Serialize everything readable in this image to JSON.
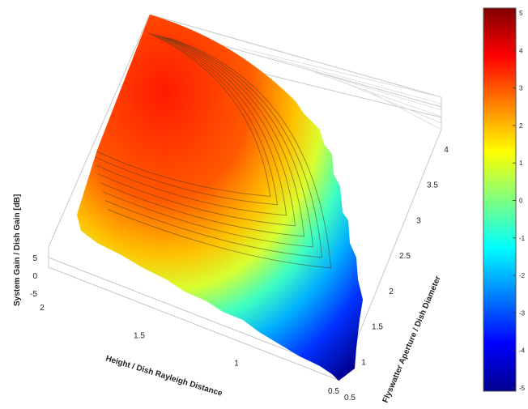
{
  "chart_data": {
    "type": "surface",
    "title": "",
    "xlabel": "Height / Dish Rayleigh Distance",
    "ylabel": "Flyswatter Aperture / Dish Diameter",
    "zlabel": "System Gain / Dish Gain [dB]",
    "x_ticks": [
      "2",
      "1.5",
      "1",
      "0.5"
    ],
    "y_ticks": [
      "0.5",
      "1",
      "1.5",
      "2",
      "2.5",
      "3",
      "3.5",
      "4"
    ],
    "z_ticks": [
      "5",
      "0",
      "-5"
    ],
    "xlim": [
      0.5,
      2
    ],
    "ylim": [
      0.5,
      4
    ],
    "zlim": [
      -5,
      5
    ],
    "colorbar": {
      "min": -5,
      "max": 5,
      "ticks": [
        "5",
        "4",
        "3",
        "2",
        "1",
        "0",
        "-1",
        "-2",
        "-3",
        "-4",
        "-5"
      ],
      "colormap": "jet"
    },
    "grid": true,
    "surface_peak_db": 5
  }
}
